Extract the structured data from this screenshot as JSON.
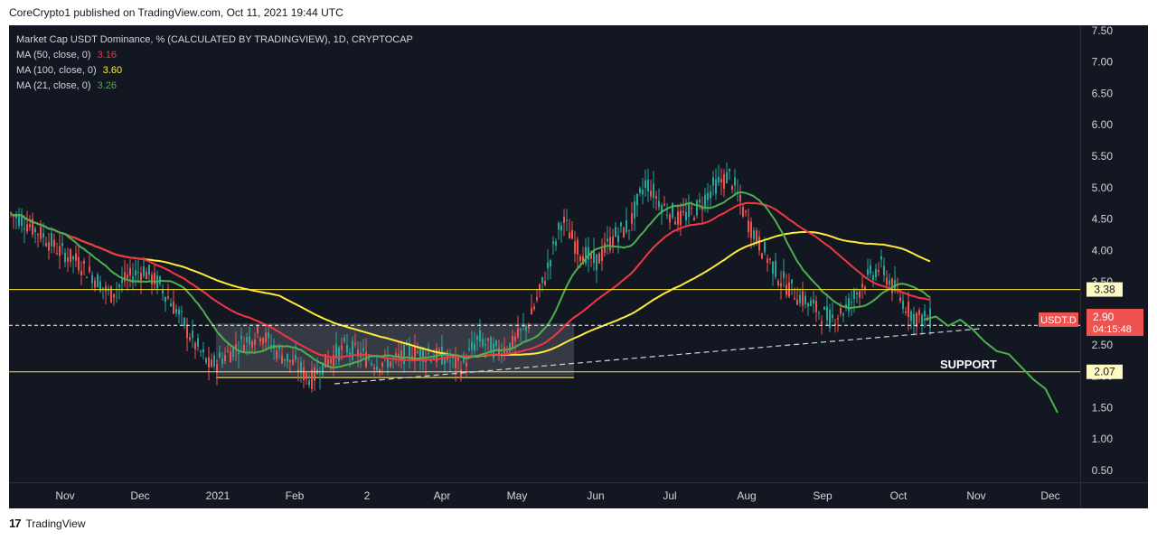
{
  "header": {
    "publisher": "CoreCrypto1 published on TradingView.com, Oct 11, 2021 19:44 UTC"
  },
  "footer": {
    "brand": "TradingView",
    "logo": "17"
  },
  "legend": {
    "title": "Market Cap USDT Dominance, % (CALCULATED BY TRADINGVIEW), 1D, CRYPTOCAP",
    "ma": [
      {
        "label": "MA (50, close, 0)",
        "value": "3.16",
        "color": "#f23645"
      },
      {
        "label": "MA (100, close, 0)",
        "value": "3.60",
        "color": "#ffeb3b"
      },
      {
        "label": "MA (21, close, 0)",
        "value": "3.26",
        "color": "#4caf50"
      }
    ]
  },
  "price_axis": {
    "ticks": [
      "7.50",
      "7.00",
      "6.50",
      "6.00",
      "5.50",
      "5.00",
      "4.50",
      "4.00",
      "3.50",
      "3.00",
      "2.50",
      "2.00",
      "1.50",
      "1.00",
      "0.50"
    ]
  },
  "time_axis": {
    "ticks": [
      "Nov",
      "Dec",
      "2021",
      "Feb",
      "2",
      "Apr",
      "May",
      "Jun",
      "Jul",
      "Aug",
      "Sep",
      "Oct",
      "Nov",
      "Dec"
    ]
  },
  "annotations": {
    "support_label": "SUPPORT",
    "level_high": "3.38",
    "level_mid": "2.81",
    "level_low": "2.07",
    "symbol": "USDT.D",
    "last_price": "2.90",
    "countdown": "04:15:48"
  },
  "chart_data": {
    "type": "candlestick",
    "symbol": "USDT.D",
    "timeframe": "1D",
    "ylim": [
      0.3,
      7.7
    ],
    "x_axis": [
      "Nov",
      "Dec",
      "2021",
      "Feb",
      "2",
      "Apr",
      "May",
      "Jun",
      "Jul",
      "Aug",
      "Sep",
      "Oct",
      "Nov",
      "Dec"
    ],
    "close_series": [
      4.6,
      4.45,
      4.25,
      4.0,
      3.85,
      3.6,
      3.3,
      3.55,
      3.7,
      3.45,
      3.05,
      2.55,
      2.15,
      2.35,
      2.55,
      2.7,
      2.4,
      2.2,
      1.95,
      2.25,
      2.45,
      2.35,
      2.2,
      2.25,
      2.4,
      2.35,
      2.3,
      2.15,
      2.6,
      2.4,
      2.5,
      2.85,
      3.6,
      4.5,
      4.0,
      3.8,
      4.2,
      4.4,
      5.1,
      4.7,
      4.5,
      4.65,
      5.0,
      5.2,
      4.5,
      4.0,
      3.55,
      3.3,
      3.1,
      2.9,
      3.1,
      3.5,
      3.75,
      3.3,
      2.95,
      2.9
    ],
    "moving_averages": [
      {
        "name": "MA (50, close, 0)",
        "last": 3.16,
        "color": "#f23645"
      },
      {
        "name": "MA (100, close, 0)",
        "last": 3.6,
        "color": "#ffeb3b"
      },
      {
        "name": "MA (21, close, 0)",
        "last": 3.26,
        "color": "#4caf50"
      }
    ],
    "horizontal_levels": [
      {
        "value": 3.38,
        "style": "solid",
        "color": "#ffeb3b"
      },
      {
        "value": 2.81,
        "style": "dashed",
        "color": "#ffffff"
      },
      {
        "value": 2.07,
        "style": "solid",
        "color": "#ffeb3b"
      }
    ],
    "last_price": 2.9,
    "projection": [
      2.9,
      2.95,
      2.8,
      2.9,
      2.75,
      2.55,
      2.4,
      2.35,
      2.15,
      1.95,
      1.8,
      1.42
    ]
  }
}
